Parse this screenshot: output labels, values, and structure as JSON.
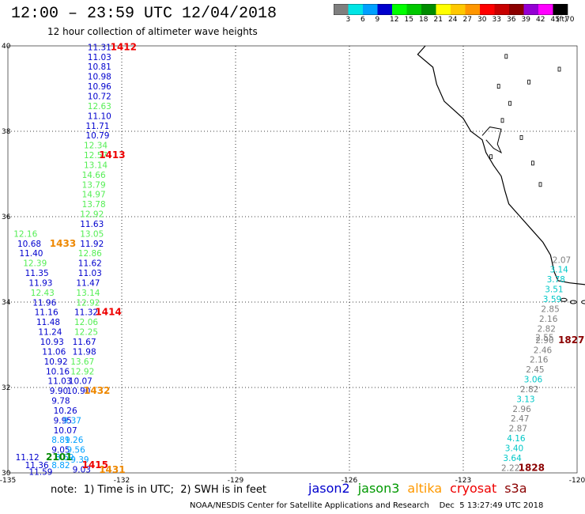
{
  "header": {
    "title": "12:00 – 23:59 UTC 12/04/2018",
    "subtitle": "12 hour collection of altimeter wave heights"
  },
  "scale": {
    "unit": "(ft)",
    "bins": [
      {
        "label": "3",
        "color": "#7f7f7f"
      },
      {
        "label": "6",
        "color": "#00e5e5"
      },
      {
        "label": "9",
        "color": "#00a0ff"
      },
      {
        "label": "12",
        "color": "#0000cd"
      },
      {
        "label": "15",
        "color": "#00ff00"
      },
      {
        "label": "18",
        "color": "#00c800"
      },
      {
        "label": "21",
        "color": "#008c00"
      },
      {
        "label": "24",
        "color": "#ffff00"
      },
      {
        "label": "27",
        "color": "#ffc800"
      },
      {
        "label": "30",
        "color": "#ff9600"
      },
      {
        "label": "33",
        "color": "#ff0000"
      },
      {
        "label": "36",
        "color": "#c80000"
      },
      {
        "label": "39",
        "color": "#8b0000"
      },
      {
        "label": "42",
        "color": "#9400d3"
      },
      {
        "label": "45",
        "color": "#ff00ff"
      },
      {
        "label": "70",
        "color": "#000000"
      }
    ]
  },
  "map": {
    "lat_labels": [
      "40",
      "38",
      "36",
      "34",
      "32",
      "30"
    ],
    "lon_labels": [
      "-135",
      "-132",
      "-129",
      "-126",
      "-123",
      "-120"
    ],
    "lat_range": [
      30,
      40
    ],
    "lon_range": [
      -135,
      -120
    ],
    "swh_values": [
      {
        "v": "11.31",
        "lon": -132.9,
        "lat": 39.9,
        "c": "#0000cd"
      },
      {
        "v": "11.03",
        "lon": -132.9,
        "lat": 39.67,
        "c": "#0000cd"
      },
      {
        "v": "10.81",
        "lon": -132.9,
        "lat": 39.44,
        "c": "#0000cd"
      },
      {
        "v": "10.98",
        "lon": -132.9,
        "lat": 39.21,
        "c": "#0000cd"
      },
      {
        "v": "10.96",
        "lon": -132.9,
        "lat": 38.98,
        "c": "#0000cd"
      },
      {
        "v": "10.72",
        "lon": -132.9,
        "lat": 38.75,
        "c": "#0000cd"
      },
      {
        "v": "12.63",
        "lon": -132.9,
        "lat": 38.52,
        "c": "#55ee55"
      },
      {
        "v": "11.10",
        "lon": -132.9,
        "lat": 38.29,
        "c": "#0000cd"
      },
      {
        "v": "11.71",
        "lon": -132.95,
        "lat": 38.06,
        "c": "#0000cd"
      },
      {
        "v": "10.79",
        "lon": -132.95,
        "lat": 37.83,
        "c": "#0000cd"
      },
      {
        "v": "12.34",
        "lon": -133.0,
        "lat": 37.6,
        "c": "#55ee55"
      },
      {
        "v": "12.57",
        "lon": -133.0,
        "lat": 37.37,
        "c": "#55ee55"
      },
      {
        "v": "13.14",
        "lon": -133.0,
        "lat": 37.14,
        "c": "#55ee55"
      },
      {
        "v": "14.66",
        "lon": -133.05,
        "lat": 36.91,
        "c": "#55ee55"
      },
      {
        "v": "13.79",
        "lon": -133.05,
        "lat": 36.68,
        "c": "#55ee55"
      },
      {
        "v": "14.97",
        "lon": -133.05,
        "lat": 36.45,
        "c": "#55ee55"
      },
      {
        "v": "13.78",
        "lon": -133.05,
        "lat": 36.22,
        "c": "#55ee55"
      },
      {
        "v": "12.92",
        "lon": -133.1,
        "lat": 35.99,
        "c": "#55ee55"
      },
      {
        "v": "11.63",
        "lon": -133.1,
        "lat": 35.76,
        "c": "#0000cd"
      },
      {
        "v": "13.05",
        "lon": -133.1,
        "lat": 35.53,
        "c": "#55ee55"
      },
      {
        "v": "11.92",
        "lon": -133.1,
        "lat": 35.3,
        "c": "#0000cd"
      },
      {
        "v": "12.86",
        "lon": -133.15,
        "lat": 35.07,
        "c": "#55ee55"
      },
      {
        "v": "11.62",
        "lon": -133.15,
        "lat": 34.84,
        "c": "#0000cd"
      },
      {
        "v": "11.03",
        "lon": -133.15,
        "lat": 34.61,
        "c": "#0000cd"
      },
      {
        "v": "11.47",
        "lon": -133.2,
        "lat": 34.38,
        "c": "#0000cd"
      },
      {
        "v": "13.14",
        "lon": -133.2,
        "lat": 34.15,
        "c": "#55ee55"
      },
      {
        "v": "12.92",
        "lon": -133.2,
        "lat": 33.92,
        "c": "#55ee55"
      },
      {
        "v": "11.32",
        "lon": -133.25,
        "lat": 33.69,
        "c": "#0000cd"
      },
      {
        "v": "12.06",
        "lon": -133.25,
        "lat": 33.46,
        "c": "#55ee55"
      },
      {
        "v": "12.25",
        "lon": -133.25,
        "lat": 33.23,
        "c": "#55ee55"
      },
      {
        "v": "11.67",
        "lon": -133.3,
        "lat": 33.0,
        "c": "#0000cd"
      },
      {
        "v": "11.98",
        "lon": -133.3,
        "lat": 32.77,
        "c": "#0000cd"
      },
      {
        "v": "13.67",
        "lon": -133.35,
        "lat": 32.54,
        "c": "#55ee55"
      },
      {
        "v": "12.92",
        "lon": -133.35,
        "lat": 32.31,
        "c": "#55ee55"
      },
      {
        "v": "10.07",
        "lon": -133.4,
        "lat": 32.08,
        "c": "#0000cd"
      },
      {
        "v": "10.90",
        "lon": -133.45,
        "lat": 31.85,
        "c": "#0000cd"
      },
      {
        "v": "12.16",
        "lon": -134.85,
        "lat": 35.53,
        "c": "#55ee55"
      },
      {
        "v": "10.68",
        "lon": -134.75,
        "lat": 35.3,
        "c": "#0000cd"
      },
      {
        "v": "11.40",
        "lon": -134.7,
        "lat": 35.07,
        "c": "#0000cd"
      },
      {
        "v": "12.39",
        "lon": -134.6,
        "lat": 34.84,
        "c": "#55ee55"
      },
      {
        "v": "11.35",
        "lon": -134.55,
        "lat": 34.61,
        "c": "#0000cd"
      },
      {
        "v": "11.93",
        "lon": -134.45,
        "lat": 34.38,
        "c": "#0000cd"
      },
      {
        "v": "12.43",
        "lon": -134.4,
        "lat": 34.15,
        "c": "#55ee55"
      },
      {
        "v": "11.96",
        "lon": -134.35,
        "lat": 33.92,
        "c": "#0000cd"
      },
      {
        "v": "11.16",
        "lon": -134.3,
        "lat": 33.69,
        "c": "#0000cd"
      },
      {
        "v": "11.48",
        "lon": -134.25,
        "lat": 33.46,
        "c": "#0000cd"
      },
      {
        "v": "11.24",
        "lon": -134.2,
        "lat": 33.23,
        "c": "#0000cd"
      },
      {
        "v": "10.93",
        "lon": -134.15,
        "lat": 33.0,
        "c": "#0000cd"
      },
      {
        "v": "11.06",
        "lon": -134.1,
        "lat": 32.77,
        "c": "#0000cd"
      },
      {
        "v": "10.92",
        "lon": -134.05,
        "lat": 32.54,
        "c": "#0000cd"
      },
      {
        "v": "10.16",
        "lon": -134.0,
        "lat": 32.31,
        "c": "#0000cd"
      },
      {
        "v": "11.03",
        "lon": -133.95,
        "lat": 32.08,
        "c": "#0000cd"
      },
      {
        "v": "9.90",
        "lon": -133.9,
        "lat": 31.85,
        "c": "#0000cd"
      },
      {
        "v": "9.78",
        "lon": -133.85,
        "lat": 31.62,
        "c": "#0000cd"
      },
      {
        "v": "10.26",
        "lon": -133.8,
        "lat": 31.39,
        "c": "#0000cd"
      },
      {
        "v": "9.95",
        "lon": -133.8,
        "lat": 31.16,
        "c": "#0000cd"
      },
      {
        "v": "10.07",
        "lon": -133.8,
        "lat": 30.93,
        "c": "#0000cd"
      },
      {
        "v": "8.81",
        "lon": -133.85,
        "lat": 30.7,
        "c": "#00a0ff"
      },
      {
        "v": "9.05",
        "lon": -133.85,
        "lat": 30.47,
        "c": "#0000cd"
      },
      {
        "v": "8.69",
        "lon": -133.75,
        "lat": 30.3,
        "c": "#00a0ff"
      },
      {
        "v": "8.82",
        "lon": -133.85,
        "lat": 30.11,
        "c": "#00a0ff"
      },
      {
        "v": "9.37",
        "lon": -133.55,
        "lat": 31.16,
        "c": "#00a0ff"
      },
      {
        "v": "9.26",
        "lon": -133.5,
        "lat": 30.7,
        "c": "#00a0ff"
      },
      {
        "v": "9.56",
        "lon": -133.45,
        "lat": 30.47,
        "c": "#00a0ff"
      },
      {
        "v": "9.39",
        "lon": -133.35,
        "lat": 30.24,
        "c": "#00a0ff"
      },
      {
        "v": "9.03",
        "lon": -133.3,
        "lat": 30.01,
        "c": "#0000cd"
      },
      {
        "v": "11.12",
        "lon": -134.8,
        "lat": 30.3,
        "c": "#0000cd"
      },
      {
        "v": "11.36",
        "lon": -134.55,
        "lat": 30.11,
        "c": "#0000cd"
      },
      {
        "v": "11.59",
        "lon": -134.45,
        "lat": 29.95,
        "c": "#0000cd"
      },
      {
        "v": "2.07",
        "lon": -120.65,
        "lat": 34.92,
        "c": "#7f7f7f"
      },
      {
        "v": "3.14",
        "lon": -120.72,
        "lat": 34.69,
        "c": "#00c8c8"
      },
      {
        "v": "3.78",
        "lon": -120.8,
        "lat": 34.46,
        "c": "#00c8c8"
      },
      {
        "v": "3.51",
        "lon": -120.85,
        "lat": 34.23,
        "c": "#00c8c8"
      },
      {
        "v": "3.59",
        "lon": -120.9,
        "lat": 34.0,
        "c": "#00c8c8"
      },
      {
        "v": "2.85",
        "lon": -120.95,
        "lat": 33.77,
        "c": "#7f7f7f"
      },
      {
        "v": "2.16",
        "lon": -121.0,
        "lat": 33.54,
        "c": "#7f7f7f"
      },
      {
        "v": "2.82",
        "lon": -121.05,
        "lat": 33.31,
        "c": "#7f7f7f"
      },
      {
        "v": "2.55",
        "lon": -121.1,
        "lat": 33.1,
        "c": "#7f7f7f"
      },
      {
        "v": "2.90",
        "lon": -121.1,
        "lat": 33.04,
        "c": "#7f7f7f"
      },
      {
        "v": "2.46",
        "lon": -121.15,
        "lat": 32.81,
        "c": "#7f7f7f"
      },
      {
        "v": "2.16",
        "lon": -121.25,
        "lat": 32.58,
        "c": "#7f7f7f"
      },
      {
        "v": "2.45",
        "lon": -121.35,
        "lat": 32.35,
        "c": "#7f7f7f"
      },
      {
        "v": "3.06",
        "lon": -121.4,
        "lat": 32.12,
        "c": "#00c8c8"
      },
      {
        "v": "2.82",
        "lon": -121.5,
        "lat": 31.89,
        "c": "#7f7f7f"
      },
      {
        "v": "3.13",
        "lon": -121.6,
        "lat": 31.66,
        "c": "#00c8c8"
      },
      {
        "v": "2.96",
        "lon": -121.7,
        "lat": 31.43,
        "c": "#7f7f7f"
      },
      {
        "v": "2.47",
        "lon": -121.75,
        "lat": 31.2,
        "c": "#7f7f7f"
      },
      {
        "v": "2.87",
        "lon": -121.8,
        "lat": 30.97,
        "c": "#7f7f7f"
      },
      {
        "v": "4.16",
        "lon": -121.85,
        "lat": 30.74,
        "c": "#00c8c8"
      },
      {
        "v": "3.40",
        "lon": -121.9,
        "lat": 30.51,
        "c": "#00c8c8"
      },
      {
        "v": "3.64",
        "lon": -121.95,
        "lat": 30.28,
        "c": "#00c8c8"
      },
      {
        "v": "2.22",
        "lon": -122.0,
        "lat": 30.05,
        "c": "#7f7f7f"
      }
    ],
    "pass_labels": [
      {
        "t": "1412",
        "lon": -132.3,
        "lat": 39.9,
        "c": "#ee0000"
      },
      {
        "t": "1413",
        "lon": -132.6,
        "lat": 37.37,
        "c": "#ee0000"
      },
      {
        "t": "1433",
        "lon": -133.9,
        "lat": 35.3,
        "c": "#ee8800"
      },
      {
        "t": "1414",
        "lon": -132.7,
        "lat": 33.69,
        "c": "#ee0000"
      },
      {
        "t": "1432",
        "lon": -133.0,
        "lat": 31.85,
        "c": "#ee8800"
      },
      {
        "t": "2101",
        "lon": -134.0,
        "lat": 30.3,
        "c": "#008800"
      },
      {
        "t": "1415",
        "lon": -133.05,
        "lat": 30.11,
        "c": "#ee0000"
      },
      {
        "t": "1431",
        "lon": -132.6,
        "lat": 30.0,
        "c": "#ee8800"
      },
      {
        "t": "1827",
        "lon": -120.5,
        "lat": 33.04,
        "c": "#8b0000"
      },
      {
        "t": "1828",
        "lon": -121.55,
        "lat": 30.05,
        "c": "#8b0000"
      }
    ]
  },
  "footer": {
    "note": "note:  1) Time is in UTC;  2) SWH is in feet",
    "satellites": [
      {
        "name": "jason2",
        "color": "#0000cd"
      },
      {
        "name": "jason3",
        "color": "#009900"
      },
      {
        "name": "altika",
        "color": "#ff9900"
      },
      {
        "name": "cryosat",
        "color": "#ee0000"
      },
      {
        "name": "s3a",
        "color": "#8b0000"
      }
    ],
    "credit": "NOAA/NESDIS Center for Satellite Applications and Research    Dec  5 13:27:49 UTC 2018"
  }
}
